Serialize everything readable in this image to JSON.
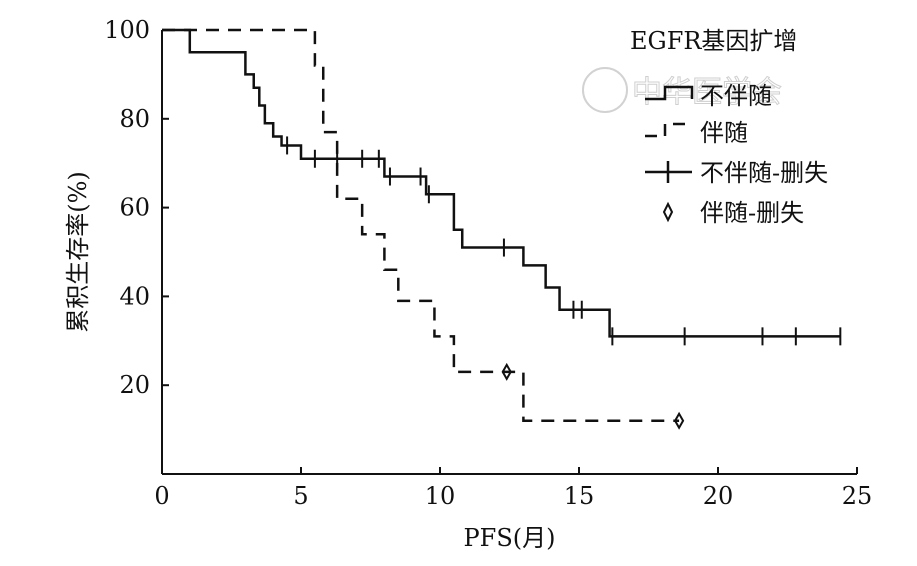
{
  "chart_data": {
    "type": "line",
    "subtype": "kaplan-meier step",
    "title": "",
    "xlabel": "PFS(月)",
    "ylabel": "累积生存率(%)",
    "xlim": [
      0,
      25
    ],
    "ylim": [
      0,
      100
    ],
    "x_ticks": [
      0,
      5,
      10,
      15,
      20,
      25
    ],
    "y_ticks": [
      20,
      40,
      60,
      80,
      100
    ],
    "grid": false,
    "legend": {
      "title": "EGFR基因扩增",
      "placement": "top-right",
      "entries": [
        "不伴随",
        "伴随",
        "不伴随-删失",
        "伴随-删失"
      ]
    },
    "watermark": "中华医学会",
    "series": [
      {
        "name": "不伴随",
        "style": "solid",
        "color": "#111111",
        "steps": [
          [
            0,
            100
          ],
          [
            1,
            95
          ],
          [
            3,
            90
          ],
          [
            3.3,
            87
          ],
          [
            3.5,
            83
          ],
          [
            3.7,
            79
          ],
          [
            4,
            76
          ],
          [
            4.3,
            74
          ],
          [
            5,
            71
          ],
          [
            8,
            67
          ],
          [
            9.5,
            63
          ],
          [
            10.5,
            55
          ],
          [
            10.8,
            51
          ],
          [
            13,
            47
          ],
          [
            13.8,
            42
          ],
          [
            14.3,
            37
          ],
          [
            16.1,
            31
          ],
          [
            24.4,
            31
          ]
        ],
        "censored": [
          4.5,
          5.5,
          6.3,
          7.2,
          7.8,
          8.2,
          9.3,
          9.6,
          12.3,
          14.8,
          15.1,
          16.2,
          18.8,
          21.6,
          22.8,
          24.4
        ],
        "censor_marker": "plus"
      },
      {
        "name": "伴随",
        "style": "dashed",
        "color": "#111111",
        "steps": [
          [
            0,
            100
          ],
          [
            5.5,
            92
          ],
          [
            5.8,
            77
          ],
          [
            6.3,
            62
          ],
          [
            7.2,
            54
          ],
          [
            8,
            46
          ],
          [
            8.5,
            39
          ],
          [
            9.8,
            31
          ],
          [
            10.5,
            23
          ],
          [
            13,
            12
          ],
          [
            18.6,
            12
          ]
        ],
        "censored": [
          12.4,
          18.6
        ],
        "censor_marker": "diamond"
      }
    ]
  }
}
